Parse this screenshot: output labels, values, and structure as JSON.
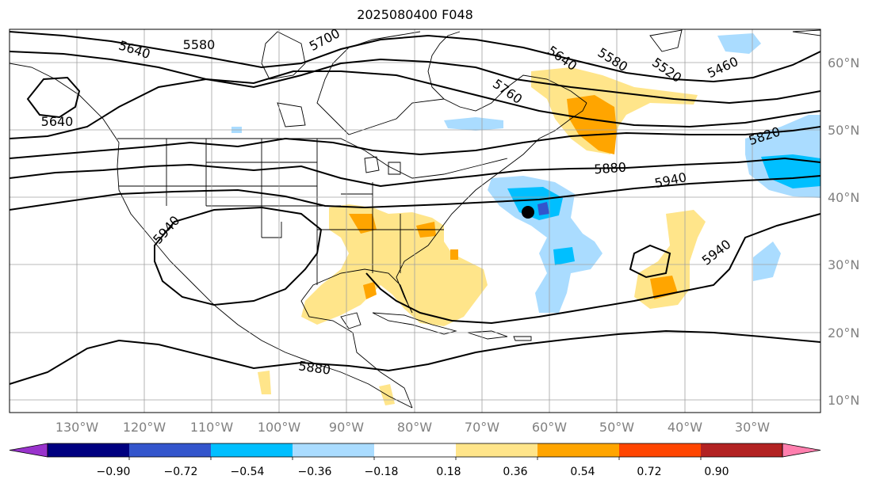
{
  "title": "2025080400 F048",
  "map": {
    "lon_labels": [
      "130°W",
      "120°W",
      "110°W",
      "100°W",
      "90°W",
      "80°W",
      "70°W",
      "60°W",
      "50°W",
      "40°W",
      "30°W"
    ],
    "lat_labels": [
      "60°N",
      "50°N",
      "40°N",
      "30°N",
      "20°N",
      "10°N"
    ],
    "contour_labels": [
      "5640",
      "5580",
      "5700",
      "5640",
      "5580",
      "5520",
      "5460",
      "5760",
      "5640",
      "5820",
      "5880",
      "5940",
      "5940",
      "5940",
      "5880"
    ],
    "marker": "storm-center-dot"
  },
  "colorbar": {
    "ticks": [
      "−0.90",
      "−0.72",
      "−0.54",
      "−0.36",
      "−0.18",
      "0.18",
      "0.36",
      "0.54",
      "0.72",
      "0.90"
    ],
    "colors": [
      "#9933cc",
      "#000080",
      "#3355cc",
      "#00bfff",
      "#aadcff",
      "#ffffff",
      "#ffe58a",
      "#ffa500",
      "#ff4500",
      "#b22222",
      "#ff7fae"
    ],
    "extend": "both"
  }
}
